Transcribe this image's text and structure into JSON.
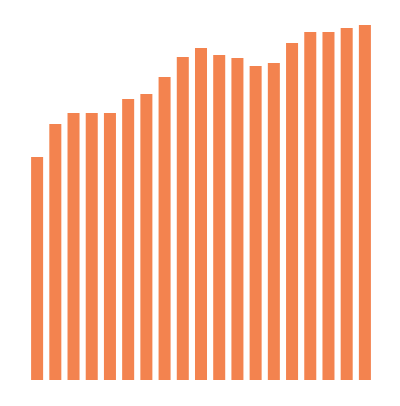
{
  "chart_data": {
    "type": "bar",
    "categories": [
      null,
      null,
      null,
      null,
      null,
      null,
      null,
      null,
      null,
      null,
      null,
      null,
      null,
      null,
      null,
      null,
      null,
      null,
      null
    ],
    "values": [
      223,
      256,
      267,
      267,
      267,
      281,
      286,
      303,
      323,
      332,
      325,
      322,
      314,
      317,
      337,
      348,
      348,
      352,
      355
    ],
    "color": "#f3834f",
    "ylim": [
      0,
      360
    ]
  }
}
